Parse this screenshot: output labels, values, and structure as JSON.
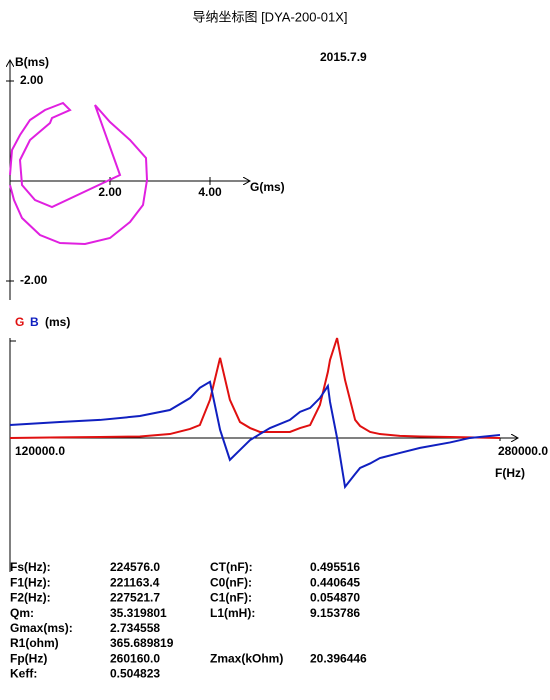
{
  "title": "导纳坐标图  [DYA-200-01X]",
  "date": "2015.7.9",
  "chart_data": [
    {
      "type": "line",
      "x_label": "G(ms)",
      "y_label": "B(ms)",
      "x": [
        0,
        0.04,
        0.2,
        0.4,
        0.7,
        1.06,
        1.2,
        0.84,
        0.8,
        0.4,
        0.2,
        0.24,
        0.5,
        0.84,
        2.2,
        1.7,
        2.0,
        2.4,
        2.72,
        2.74,
        2.66,
        2.4,
        2.0,
        1.5,
        1.0,
        0.6,
        0.24,
        0.08,
        0
      ],
      "series": [
        {
          "color": "#e020e0",
          "values": [
            0.12,
            0.62,
            0.92,
            1.22,
            1.42,
            1.56,
            1.42,
            1.26,
            1.16,
            0.82,
            0.42,
            -0.08,
            -0.38,
            -0.52,
            0.12,
            1.52,
            1.18,
            0.82,
            0.46,
            0.02,
            -0.48,
            -0.82,
            -1.14,
            -1.26,
            -1.24,
            -1.08,
            -0.74,
            -0.38,
            -0.08
          ]
        }
      ],
      "xlim": [
        0,
        4.76
      ],
      "ylim": [
        -2.34,
        2.38
      ],
      "xticks": [
        {
          "value": 2,
          "label": "2.00"
        },
        {
          "value": 4,
          "label": "4.00"
        }
      ],
      "yticks": [
        {
          "value": 2,
          "label": "2.00"
        },
        {
          "value": -2,
          "label": "-2.00"
        }
      ]
    },
    {
      "type": "line",
      "x_label": "F(Hz)",
      "y_label": "(ms)",
      "x": [
        120000,
        136300,
        149400,
        162400,
        172200,
        178800,
        182000,
        185300,
        188600,
        191800,
        195100,
        198400,
        201600,
        204900,
        211400,
        214700,
        218000,
        221200,
        223800,
        224500,
        226800,
        229400,
        232700,
        234300,
        237600,
        240800,
        247300,
        253900,
        263700,
        270200,
        280000
      ],
      "series": [
        {
          "name": "G",
          "color": "#e01010",
          "values": [
            0,
            0.02,
            0.03,
            0.05,
            0.13,
            0.3,
            0.43,
            1.27,
            2.67,
            1.27,
            0.53,
            0.33,
            0.2,
            0.2,
            0.2,
            0.33,
            0.43,
            1.1,
            2.2,
            2.6,
            3.33,
            1.93,
            0.6,
            0.4,
            0.2,
            0.13,
            0.07,
            0.05,
            0.03,
            0.02,
            0
          ]
        },
        {
          "name": "B",
          "color": "#1020c0",
          "values": [
            0.43,
            0.53,
            0.6,
            0.73,
            0.93,
            1.33,
            1.67,
            1.87,
            0.27,
            -0.73,
            -0.4,
            -0.07,
            0.13,
            0.33,
            0.6,
            0.87,
            1.0,
            1.33,
            1.73,
            1.2,
            0.0,
            -1.63,
            -1.2,
            -1.0,
            -0.85,
            -0.67,
            -0.5,
            -0.33,
            -0.15,
            0,
            0.1
          ]
        }
      ],
      "xlim": [
        120000,
        280000
      ],
      "ylim": [
        -4.4,
        3.33
      ],
      "xticks": [
        {
          "value": 120000,
          "label": "120000.0"
        },
        {
          "value": 280000,
          "label": "280000.0"
        }
      ]
    }
  ],
  "parameters": {
    "rows": [
      [
        "Fs(Hz):",
        "224576.0",
        "CT(nF):",
        "0.495516"
      ],
      [
        "F1(Hz):",
        "221163.4",
        "C0(nF):",
        "0.440645"
      ],
      [
        "F2(Hz):",
        "227521.7",
        "C1(nF):",
        "0.054870"
      ],
      [
        "Qm:",
        "35.319801",
        "L1(mH):",
        "9.153786"
      ],
      [
        "Gmax(ms):",
        "2.734558"
      ],
      [
        "R1(ohm)",
        "365.689819"
      ],
      [
        "Fp(Hz)",
        "260160.0",
        "Zmax(kOhm)",
        "20.396446"
      ],
      [
        "Keff:",
        "0.504823"
      ]
    ]
  }
}
